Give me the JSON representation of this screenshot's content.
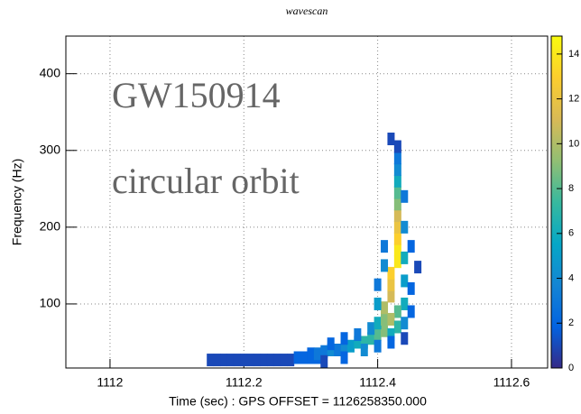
{
  "chart_data": {
    "type": "heatmap",
    "title": "wavescan",
    "x_label": "Time (sec) : GPS OFFSET = 1126258350.000",
    "y_label": "Frequency (Hz)",
    "annotations": [
      "GW150914",
      "circular orbit"
    ],
    "xlim": [
      1111.934,
      1112.654
    ],
    "xticks": [
      1112,
      1112.2,
      1112.4,
      1112.6
    ],
    "ylim": [
      16.5,
      449
    ],
    "yticks": [
      100,
      200,
      300,
      400
    ],
    "zlim": [
      0,
      14.8
    ],
    "zticks": [
      0,
      2,
      4,
      6,
      8,
      10,
      12,
      14
    ],
    "grid": true,
    "colormap": [
      "#352a87",
      "#0363e1",
      "#1485d4",
      "#06a7c6",
      "#38b99e",
      "#92bf73",
      "#d9ba56",
      "#fcce2e",
      "#f9fb0e"
    ],
    "x": [
      1112.15,
      1112.16,
      1112.17,
      1112.18,
      1112.19,
      1112.2,
      1112.21,
      1112.22,
      1112.23,
      1112.24,
      1112.25,
      1112.26,
      1112.27,
      1112.28,
      1112.29,
      1112.3,
      1112.31,
      1112.3,
      1112.31,
      1112.32,
      1112.33,
      1112.34,
      1112.35,
      1112.36,
      1112.37,
      1112.38,
      1112.39,
      1112.4,
      1112.41,
      1112.33,
      1112.35,
      1112.37,
      1112.39,
      1112.4,
      1112.41,
      1112.41,
      1112.42,
      1112.42,
      1112.42,
      1112.43,
      1112.43,
      1112.43,
      1112.43,
      1112.43,
      1112.43,
      1112.43,
      1112.43,
      1112.43,
      1112.43,
      1112.43,
      1112.42,
      1112.4,
      1112.4,
      1112.41,
      1112.41,
      1112.44,
      1112.44,
      1112.44,
      1112.44,
      1112.45,
      1112.45,
      1112.44,
      1112.43,
      1112.42,
      1112.43,
      1112.42,
      1112.44,
      1112.45,
      1112.46,
      1112.38,
      1112.4,
      1112.42,
      1112.44,
      1112.32,
      1112.35
    ],
    "y": [
      27,
      27,
      27,
      27,
      27,
      27,
      27,
      27,
      27,
      27,
      27,
      27,
      27,
      30,
      30,
      30,
      30,
      35,
      35,
      38,
      40,
      40,
      45,
      45,
      50,
      50,
      55,
      60,
      65,
      48,
      55,
      60,
      68,
      75,
      80,
      95,
      110,
      125,
      140,
      155,
      170,
      185,
      200,
      215,
      230,
      245,
      260,
      275,
      290,
      305,
      315,
      100,
      125,
      150,
      175,
      130,
      160,
      200,
      240,
      120,
      175,
      100,
      90,
      80,
      70,
      60,
      75,
      90,
      148,
      40,
      45,
      50,
      55,
      25,
      30
    ],
    "values": [
      1,
      1,
      1,
      1,
      1,
      1,
      1,
      1,
      1,
      1,
      1,
      1,
      1,
      2,
      2,
      2,
      2,
      2,
      3,
      3,
      4,
      3,
      4,
      5,
      6,
      7,
      7,
      8,
      9,
      2,
      2,
      3,
      4,
      6,
      9,
      10,
      11,
      12,
      13,
      14,
      14,
      13,
      12,
      11,
      9,
      8,
      6,
      4,
      3,
      1,
      1,
      5,
      3,
      4,
      3,
      5,
      6,
      4,
      3,
      2,
      2,
      6,
      8,
      10,
      7,
      6,
      4,
      2,
      1,
      4,
      3,
      2,
      1,
      1,
      2
    ]
  }
}
